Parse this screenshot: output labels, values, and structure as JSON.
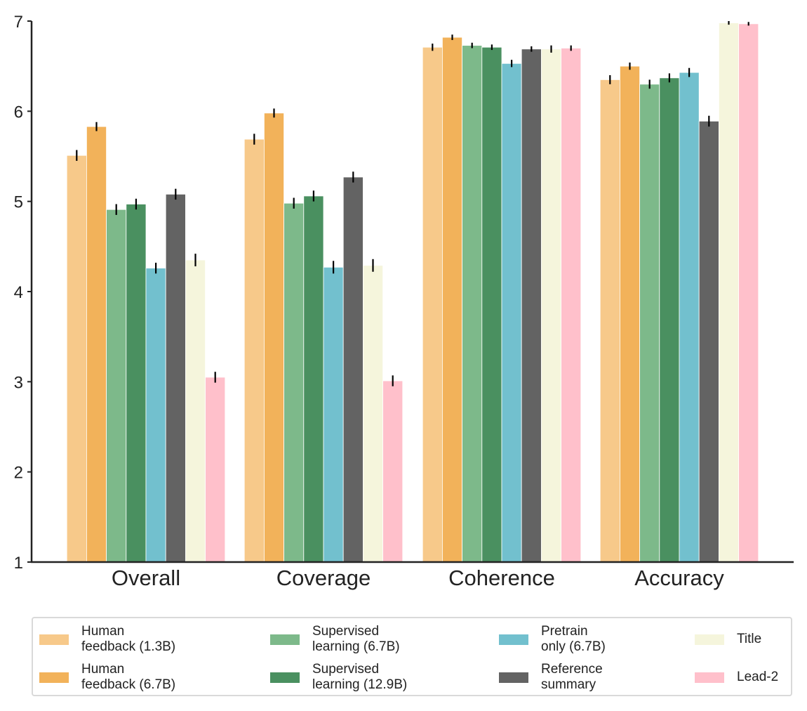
{
  "chart_data": {
    "type": "bar",
    "categories": [
      "Overall",
      "Coverage",
      "Coherence",
      "Accuracy"
    ],
    "ylim": [
      1,
      7
    ],
    "yticks": [
      1,
      2,
      3,
      4,
      5,
      6,
      7
    ],
    "error_bars": true,
    "grid": false,
    "legend_placement": "bottom",
    "series": [
      {
        "name": "Human\nfeedback (1.3B)",
        "color": "#f7c98a",
        "values": [
          5.51,
          5.69,
          6.71,
          6.35
        ],
        "errors": [
          0.06,
          0.06,
          0.04,
          0.05
        ]
      },
      {
        "name": "Human\nfeedback (6.7B)",
        "color": "#f2b25a",
        "values": [
          5.83,
          5.98,
          6.82,
          6.5
        ],
        "errors": [
          0.05,
          0.05,
          0.03,
          0.04
        ]
      },
      {
        "name": "Supervised\nlearning (6.7B)",
        "color": "#7db98a",
        "values": [
          4.91,
          4.98,
          6.73,
          6.3
        ],
        "errors": [
          0.06,
          0.06,
          0.03,
          0.05
        ]
      },
      {
        "name": "Supervised\nlearning (12.9B)",
        "color": "#4a9060",
        "values": [
          4.97,
          5.06,
          6.71,
          6.37
        ],
        "errors": [
          0.06,
          0.06,
          0.03,
          0.05
        ]
      },
      {
        "name": "Pretrain\nonly (6.7B)",
        "color": "#72c0ce",
        "values": [
          4.26,
          4.27,
          6.53,
          6.43
        ],
        "errors": [
          0.06,
          0.07,
          0.04,
          0.05
        ]
      },
      {
        "name": "Reference\nsummary",
        "color": "#636363",
        "values": [
          5.08,
          5.27,
          6.69,
          5.89
        ],
        "errors": [
          0.06,
          0.06,
          0.03,
          0.06
        ]
      },
      {
        "name": "Title",
        "color": "#f5f5dc",
        "values": [
          4.35,
          4.29,
          6.69,
          6.98
        ],
        "errors": [
          0.07,
          0.07,
          0.04,
          0.02
        ]
      },
      {
        "name": "Lead-2",
        "color": "#ffc0cb",
        "values": [
          3.05,
          3.01,
          6.7,
          6.97
        ],
        "errors": [
          0.06,
          0.06,
          0.03,
          0.02
        ]
      }
    ]
  },
  "legend": {
    "items": [
      {
        "label": "Human\nfeedback (1.3B)",
        "color": "#f7c98a"
      },
      {
        "label": "Human\nfeedback (6.7B)",
        "color": "#f2b25a"
      },
      {
        "label": "Supervised\nlearning (6.7B)",
        "color": "#7db98a"
      },
      {
        "label": "Supervised\nlearning (12.9B)",
        "color": "#4a9060"
      },
      {
        "label": "Pretrain\nonly (6.7B)",
        "color": "#72c0ce"
      },
      {
        "label": "Reference\nsummary",
        "color": "#636363"
      },
      {
        "label": "Title",
        "color": "#f5f5dc"
      },
      {
        "label": "Lead-2",
        "color": "#ffc0cb"
      }
    ]
  }
}
